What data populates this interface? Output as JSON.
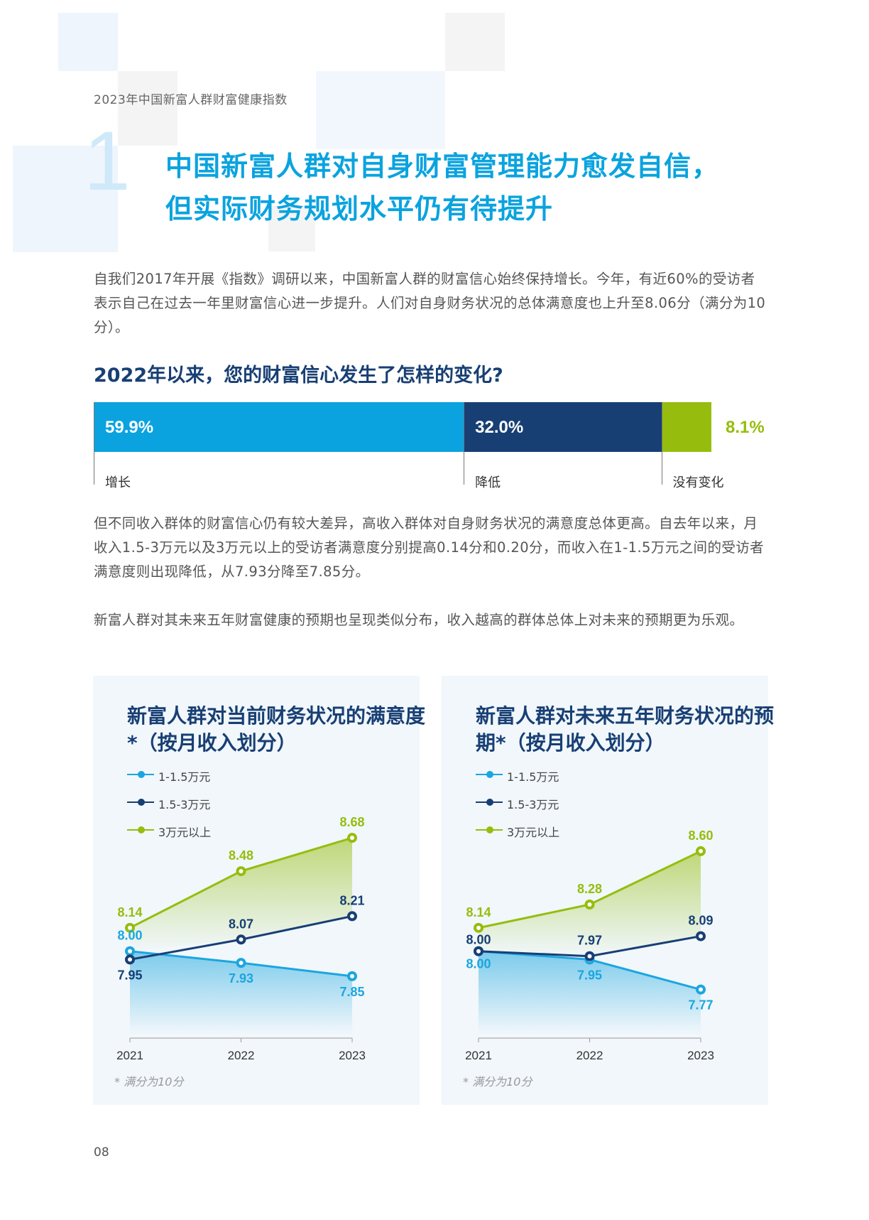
{
  "header": {
    "report_title": "2023年中国新富人群财富健康指数"
  },
  "section": {
    "number": "1",
    "title_line1": "中国新富人群对自身财富管理能力愈发自信，",
    "title_line2": "但实际财务规划水平仍有待提升"
  },
  "paragraphs": {
    "p1": "自我们2017年开展《指数》调研以来，中国新富人群的财富信心始终保持增长。今年，有近60%的受访者表示自己在过去一年里财富信心进一步提升。人们对自身财务状况的总体满意度也上升至8.06分（满分为10分）。",
    "p2": "但不同收入群体的财富信心仍有较大差异，高收入群体对自身财务状况的满意度总体更高。自去年以来，月收入1.5-3万元以及3万元以上的受访者满意度分别提高0.14分和0.20分，而收入在1-1.5万元之间的受访者满意度则出现降低，从7.93分降至7.85分。",
    "p3": "新富人群对其未来五年财富健康的预期也呈现类似分布，收入越高的群体总体上对未来的预期更为乐观。"
  },
  "confidence_chart": {
    "question": "2022年以来，您的财富信心发生了怎样的变化?",
    "segments": [
      {
        "label": "增长",
        "value": 59.9,
        "display": "59.9%",
        "color": "#0aa3df"
      },
      {
        "label": "降低",
        "value": 32.0,
        "display": "32.0%",
        "color": "#183f74"
      },
      {
        "label": "没有变化",
        "value": 8.1,
        "display": "8.1%",
        "color": "#96bd0d"
      }
    ]
  },
  "chart_data": [
    {
      "type": "line",
      "title": "新富人群对当前财务状况的满意度*（按月收入划分）",
      "categories": [
        "2021",
        "2022",
        "2023"
      ],
      "ylim": [
        7.5,
        8.8
      ],
      "series": [
        {
          "name": "1-1.5万元",
          "values": [
            8.0,
            7.93,
            7.85
          ],
          "labels": [
            "8.00",
            "7.93",
            "7.85"
          ],
          "color": "#1ba6df"
        },
        {
          "name": "1.5-3万元",
          "values": [
            7.95,
            8.07,
            8.21
          ],
          "labels": [
            "7.95",
            "8.07",
            "8.21"
          ],
          "color": "#183f74"
        },
        {
          "name": "3万元以上",
          "values": [
            8.14,
            8.48,
            8.68
          ],
          "labels": [
            "8.14",
            "8.48",
            "8.68"
          ],
          "color": "#96bd0d"
        }
      ],
      "footnote": "* 满分为10分"
    },
    {
      "type": "line",
      "title": "新富人群对未来五年财务状况的预期*（按月收入划分）",
      "categories": [
        "2021",
        "2022",
        "2023"
      ],
      "ylim": [
        7.5,
        8.8
      ],
      "series": [
        {
          "name": "1-1.5万元",
          "values": [
            8.0,
            7.95,
            7.77
          ],
          "labels": [
            "8.00",
            "7.95",
            "7.77"
          ],
          "color": "#1ba6df"
        },
        {
          "name": "1.5-3万元",
          "values": [
            8.0,
            7.97,
            8.09
          ],
          "labels": [
            "8.00",
            "7.97",
            "8.09"
          ],
          "color": "#183f74"
        },
        {
          "name": "3万元以上",
          "values": [
            8.14,
            8.28,
            8.6
          ],
          "labels": [
            "8.14",
            "8.28",
            "8.60"
          ],
          "color": "#96bd0d"
        }
      ],
      "footnote": "* 满分为10分"
    }
  ],
  "page_number": "08"
}
